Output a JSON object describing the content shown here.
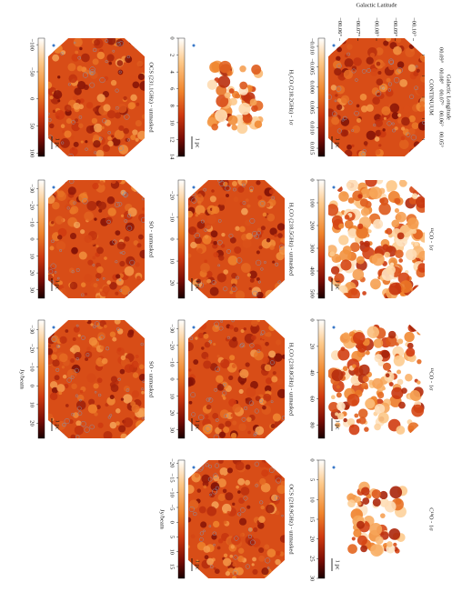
{
  "figure": {
    "axes": {
      "xlabel": "Galactic Longitude",
      "ylabel": "Galactic Latitude",
      "xlim": [
        0.098,
        0.042
      ],
      "xticks": [
        {
          "value": 0.09,
          "label": "00.09°"
        },
        {
          "value": 0.08,
          "label": "00.08°"
        },
        {
          "value": 0.07,
          "label": "00.07°"
        },
        {
          "value": 0.06,
          "label": "00.06°"
        },
        {
          "value": 0.05,
          "label": "00.05°"
        }
      ],
      "ylim": [
        -0.106,
        -0.054
      ],
      "yticks": [
        {
          "value": -0.1,
          "label": "−00.10°"
        },
        {
          "value": -0.09,
          "label": "−00.09°"
        },
        {
          "value": -0.08,
          "label": "−00.08°"
        },
        {
          "value": -0.07,
          "label": "−00.07°"
        },
        {
          "value": -0.06,
          "label": "−00.06°"
        }
      ]
    },
    "panels": [
      {
        "title": "CONTINUUM",
        "scalebar": "1 pc",
        "colorbar": {
          "clim": [
            -0.012,
            0.017
          ],
          "ticks": [
            {
              "value": -0.01,
              "label": "−0.010"
            },
            {
              "value": -0.005,
              "label": "−0.005"
            },
            {
              "value": 0,
              "label": "0.000"
            },
            0.005,
            {
              "value": 0.01,
              "label": "0.010"
            },
            0.015
          ]
        }
      },
      {
        "title": "¹²CO - 1σ",
        "scalebar": "1 pc",
        "colorbar": {
          "clim": [
            0,
            520
          ],
          "ticks": [
            0,
            100,
            200,
            300,
            400,
            500
          ]
        }
      },
      {
        "title": "¹³CO - 1σ",
        "scalebar": "1 pc",
        "colorbar": {
          "clim": [
            0,
            90
          ],
          "ticks": [
            0,
            20,
            40,
            60,
            80
          ]
        }
      },
      {
        "title": "C¹⁸O - 1σ",
        "scalebar": "1 pc",
        "colorbar": {
          "clim": [
            0,
            30
          ],
          "ticks": [
            0,
            5,
            10,
            15,
            20,
            25,
            30
          ]
        }
      },
      {
        "title": "H₂CO (218.2GHz) - 1σ",
        "scalebar": "1 pc",
        "colorbar": {
          "clim": [
            0,
            14
          ],
          "ticks": [
            0,
            2,
            4,
            6,
            8,
            10,
            12,
            14
          ]
        }
      },
      {
        "title": "H₂CO (218.5GHz) - unmasked",
        "scalebar": "1 pc",
        "colorbar": {
          "clim": [
            -27,
            27
          ],
          "ticks": [
            {
              "value": -20,
              "label": "−20"
            },
            {
              "value": -10,
              "label": "−10"
            },
            0,
            10,
            20
          ]
        }
      },
      {
        "title": "H₂CO (218.8GHz) - unmasked",
        "scalebar": "1 pc",
        "colorbar": {
          "clim": [
            -35,
            35
          ],
          "ticks": [
            {
              "value": -30,
              "label": "−30"
            },
            {
              "value": -20,
              "label": "−20"
            },
            {
              "value": -10,
              "label": "−10"
            },
            0,
            10,
            20,
            30
          ]
        }
      },
      {
        "title": "OCS (218.9GHz) - unmasked",
        "scalebar": "1 pc",
        "colorbar": {
          "clim": [
            -21,
            19
          ],
          "label": "Jy/beam",
          "ticks": [
            {
              "value": -20,
              "label": "−20"
            },
            {
              "value": -15,
              "label": "−15"
            },
            {
              "value": -10,
              "label": "−10"
            },
            {
              "value": -5,
              "label": "−5"
            },
            0,
            5,
            10,
            15
          ]
        }
      },
      {
        "title": "OCS (231.1GHz) - unmasked",
        "scalebar": "1 pc",
        "colorbar": {
          "clim": [
            -112,
            106
          ],
          "ticks": [
            {
              "value": -100,
              "label": "−100"
            },
            {
              "value": -50,
              "label": "−50"
            },
            0,
            50,
            100
          ]
        }
      },
      {
        "title": "SO - unmasked",
        "scalebar": "1 pc",
        "colorbar": {
          "clim": [
            -35,
            35
          ],
          "ticks": [
            {
              "value": -30,
              "label": "−30"
            },
            {
              "value": -20,
              "label": "−20"
            },
            {
              "value": -10,
              "label": "−10"
            },
            0,
            10,
            20,
            30
          ]
        }
      },
      {
        "title": "SO - unmasked",
        "scalebar": "1 pc",
        "colorbar": {
          "clim": [
            -35,
            28
          ],
          "label": "Jy/beam",
          "ticks": [
            {
              "value": -30,
              "label": "−30"
            },
            {
              "value": -20,
              "label": "−20"
            },
            {
              "value": -10,
              "label": "−10"
            },
            0,
            10,
            20
          ]
        }
      }
    ]
  }
}
